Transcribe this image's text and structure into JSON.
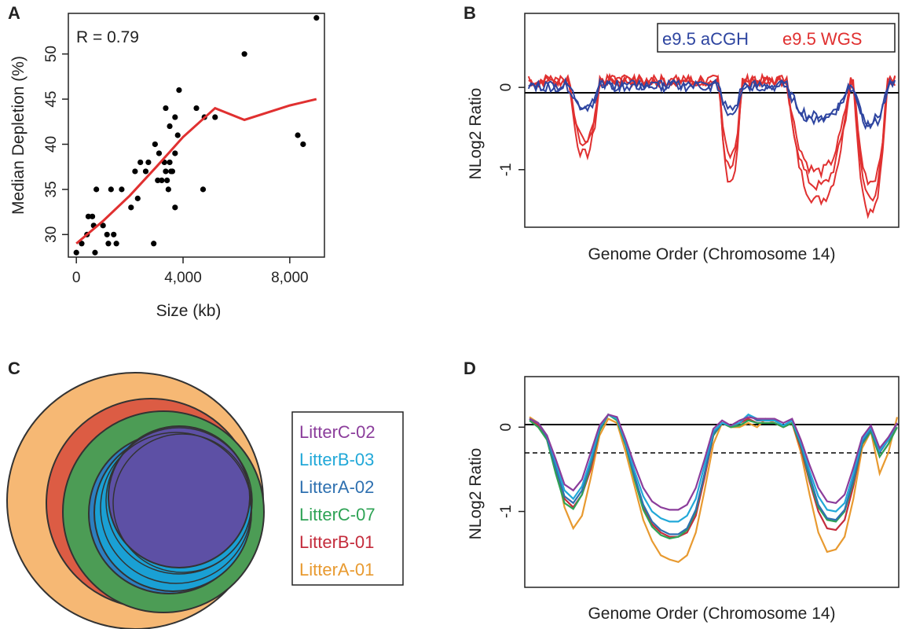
{
  "panels": {
    "a": "A",
    "b": "B",
    "c": "C",
    "d": "D"
  },
  "chart_data": [
    {
      "type": "scatter",
      "panel": "A",
      "annotation": "R = 0.79",
      "xlabel": "Size (kb)",
      "ylabel": "Median Depletion (%)",
      "xlim": [
        -300,
        9300
      ],
      "ylim": [
        27.5,
        54.5
      ],
      "xticks": [
        0,
        4000,
        8000
      ],
      "xtick_labels": [
        "0",
        "4,000",
        "8,000"
      ],
      "yticks": [
        30,
        35,
        40,
        45,
        50
      ],
      "ytick_labels": [
        "30",
        "35",
        "40",
        "45",
        "50"
      ],
      "points": [
        [
          0,
          28
        ],
        [
          200,
          29
        ],
        [
          400,
          30
        ],
        [
          450,
          32
        ],
        [
          600,
          32
        ],
        [
          650,
          31
        ],
        [
          700,
          28
        ],
        [
          750,
          35
        ],
        [
          1000,
          31
        ],
        [
          1150,
          30
        ],
        [
          1200,
          29
        ],
        [
          1300,
          35
        ],
        [
          1400,
          30
        ],
        [
          1500,
          29
        ],
        [
          1700,
          35
        ],
        [
          2050,
          33
        ],
        [
          2200,
          37
        ],
        [
          2300,
          34
        ],
        [
          2400,
          38
        ],
        [
          2600,
          37
        ],
        [
          2700,
          38
        ],
        [
          2900,
          29
        ],
        [
          2950,
          40
        ],
        [
          3050,
          36
        ],
        [
          3100,
          39
        ],
        [
          3200,
          36
        ],
        [
          3300,
          38
        ],
        [
          3350,
          37
        ],
        [
          3350,
          44
        ],
        [
          3400,
          36
        ],
        [
          3450,
          35
        ],
        [
          3500,
          42
        ],
        [
          3500,
          38
        ],
        [
          3550,
          37
        ],
        [
          3600,
          37
        ],
        [
          3700,
          33
        ],
        [
          3700,
          39
        ],
        [
          3700,
          43
        ],
        [
          3800,
          41
        ],
        [
          3850,
          46
        ],
        [
          4500,
          44
        ],
        [
          4750,
          35
        ],
        [
          4800,
          43
        ],
        [
          5200,
          43
        ],
        [
          6300,
          50
        ],
        [
          8300,
          41
        ],
        [
          8500,
          40
        ],
        [
          9000,
          54
        ]
      ],
      "fit_line": {
        "color": "#e03030",
        "x": [
          0,
          1000,
          2000,
          3000,
          4000,
          5200,
          6300,
          8000,
          9000
        ],
        "y": [
          29,
          31.5,
          34.3,
          37.5,
          40.8,
          44,
          42.7,
          44.3,
          45
        ]
      }
    },
    {
      "type": "line",
      "panel": "B",
      "xlabel": "Genome Order (Chromosome 14)",
      "ylabel": "NLog2 Ratio",
      "ylim": [
        -1.7,
        0.9
      ],
      "yticks": [
        0,
        -1
      ],
      "ytick_labels": [
        "0",
        "-1"
      ],
      "legend": [
        {
          "label": "e9.5 aCGH",
          "color": "#2e45a0"
        },
        {
          "label": "e9.5 WGS",
          "color": "#e03030"
        }
      ],
      "legend_position": "top-right",
      "reference_line": 0,
      "segments": [
        {
          "from": 0.12,
          "to": 0.2,
          "depth": 0.6
        },
        {
          "from": 0.52,
          "to": 0.58,
          "depth": 0.4
        },
        {
          "from": 0.7,
          "to": 0.87,
          "depth": 1.0
        },
        {
          "from": 0.88,
          "to": 0.97,
          "depth": 1.0
        }
      ],
      "series": [
        {
          "group": "e9.5 WGS",
          "color": "#e03030",
          "depth_scale": [
            0.9,
            1.2,
            1.45,
            1.6
          ]
        },
        {
          "group": "e9.5 aCGH",
          "color": "#2e45a0",
          "depth_scale": [
            0.25,
            0.32,
            0.42,
            0.48
          ]
        }
      ]
    },
    {
      "type": "other",
      "subtype": "nested-circles",
      "panel": "C",
      "legend": [
        {
          "label": "LitterC-02",
          "color": "#8b3d9b",
          "fill": "#5d50a5"
        },
        {
          "label": "LitterB-03",
          "color": "#21a8d8",
          "fill": "#1aa0d4"
        },
        {
          "label": "LitterA-02",
          "color": "#2e70b0",
          "fill": "#2d7fc0"
        },
        {
          "label": "LitterC-07",
          "color": "#2ea355",
          "fill": "#4c9c55"
        },
        {
          "label": "LitterB-01",
          "color": "#c42c3c",
          "fill": "#dc5c44"
        },
        {
          "label": "LitterA-01",
          "color": "#e89a30",
          "fill": "#f6b874"
        }
      ]
    },
    {
      "type": "line",
      "panel": "D",
      "xlabel": "Genome Order (Chromosome 14)",
      "ylabel": "NLog2 Ratio",
      "ylim": [
        -1.9,
        0.6
      ],
      "yticks": [
        0,
        -1
      ],
      "ytick_labels": [
        "0",
        "-1"
      ],
      "reference_line": 0,
      "threshold_line": -0.32,
      "series": [
        {
          "name": "LitterA-01",
          "color": "#e89a30",
          "y": [
            0.12,
            0.05,
            -0.1,
            -0.45,
            -0.95,
            -1.2,
            -1.05,
            -0.6,
            -0.1,
            0.1,
            0.05,
            -0.3,
            -0.7,
            -1.1,
            -1.35,
            -1.52,
            -1.57,
            -1.6,
            -1.52,
            -1.25,
            -0.75,
            -0.2,
            0.05,
            0.0,
            0.0,
            0.05,
            0.0,
            0.1,
            0.05,
            0.0,
            0.05,
            -0.3,
            -0.8,
            -1.25,
            -1.48,
            -1.45,
            -1.3,
            -0.85,
            -0.25,
            -0.05,
            -0.55,
            -0.3,
            0.12
          ]
        },
        {
          "name": "LitterB-01",
          "color": "#c42c3c",
          "y": [
            0.1,
            0.02,
            -0.15,
            -0.5,
            -0.85,
            -0.95,
            -0.8,
            -0.5,
            -0.05,
            0.15,
            0.1,
            -0.2,
            -0.6,
            -0.95,
            -1.15,
            -1.25,
            -1.3,
            -1.3,
            -1.25,
            -1.05,
            -0.6,
            -0.1,
            0.05,
            0.0,
            0.05,
            0.1,
            0.05,
            0.05,
            0.05,
            0.0,
            0.05,
            -0.25,
            -0.65,
            -1.0,
            -1.2,
            -1.22,
            -1.1,
            -0.7,
            -0.2,
            -0.05,
            -0.35,
            -0.2,
            0.05
          ]
        },
        {
          "name": "LitterC-07",
          "color": "#2ea355",
          "y": [
            0.08,
            0.0,
            -0.15,
            -0.55,
            -0.9,
            -0.97,
            -0.8,
            -0.45,
            -0.05,
            0.15,
            0.08,
            -0.22,
            -0.62,
            -0.98,
            -1.18,
            -1.28,
            -1.32,
            -1.3,
            -1.22,
            -1.0,
            -0.55,
            -0.1,
            0.05,
            0.0,
            0.02,
            0.08,
            0.05,
            0.05,
            0.05,
            0.0,
            0.05,
            -0.22,
            -0.62,
            -0.95,
            -1.1,
            -1.12,
            -1.0,
            -0.65,
            -0.2,
            -0.05,
            -0.35,
            -0.2,
            0.0
          ]
        },
        {
          "name": "LitterA-02",
          "color": "#2e70b0",
          "y": [
            0.1,
            0.05,
            -0.12,
            -0.48,
            -0.82,
            -0.9,
            -0.75,
            -0.42,
            -0.02,
            0.15,
            0.1,
            -0.2,
            -0.58,
            -0.92,
            -1.12,
            -1.22,
            -1.27,
            -1.27,
            -1.2,
            -0.98,
            -0.55,
            -0.08,
            0.05,
            0.02,
            0.05,
            0.15,
            0.08,
            0.08,
            0.08,
            0.02,
            0.08,
            -0.2,
            -0.58,
            -0.92,
            -1.08,
            -1.1,
            -0.98,
            -0.62,
            -0.18,
            -0.02,
            -0.3,
            -0.15,
            0.05
          ]
        },
        {
          "name": "LitterB-03",
          "color": "#21a8d8",
          "y": [
            0.1,
            0.05,
            -0.1,
            -0.42,
            -0.75,
            -0.85,
            -0.7,
            -0.38,
            0.0,
            0.15,
            0.1,
            -0.18,
            -0.52,
            -0.82,
            -1.0,
            -1.08,
            -1.12,
            -1.12,
            -1.05,
            -0.85,
            -0.45,
            -0.05,
            0.05,
            0.02,
            0.05,
            0.15,
            0.1,
            0.08,
            0.08,
            0.02,
            0.08,
            -0.18,
            -0.52,
            -0.82,
            -0.98,
            -1.0,
            -0.9,
            -0.55,
            -0.15,
            0.0,
            -0.28,
            -0.15,
            0.05
          ]
        },
        {
          "name": "LitterC-02",
          "color": "#8b3d9b",
          "y": [
            0.1,
            0.05,
            -0.1,
            -0.38,
            -0.68,
            -0.75,
            -0.62,
            -0.3,
            0.02,
            0.15,
            0.12,
            -0.15,
            -0.45,
            -0.72,
            -0.88,
            -0.95,
            -0.98,
            -0.98,
            -0.92,
            -0.72,
            -0.38,
            -0.02,
            0.08,
            0.02,
            0.08,
            0.12,
            0.1,
            0.1,
            0.1,
            0.05,
            0.1,
            -0.15,
            -0.45,
            -0.72,
            -0.88,
            -0.9,
            -0.8,
            -0.48,
            -0.12,
            0.02,
            -0.25,
            -0.12,
            0.05
          ]
        }
      ]
    }
  ]
}
